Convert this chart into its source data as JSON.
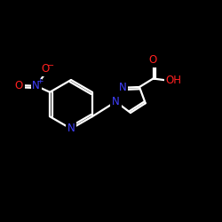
{
  "bg_color": "#000000",
  "bond_color": "#ffffff",
  "N_color": "#4040ff",
  "O_color": "#ff2020",
  "figsize": [
    2.5,
    2.5
  ],
  "dpi": 100,
  "xlim": [
    0,
    10
  ],
  "ylim": [
    0,
    10
  ]
}
